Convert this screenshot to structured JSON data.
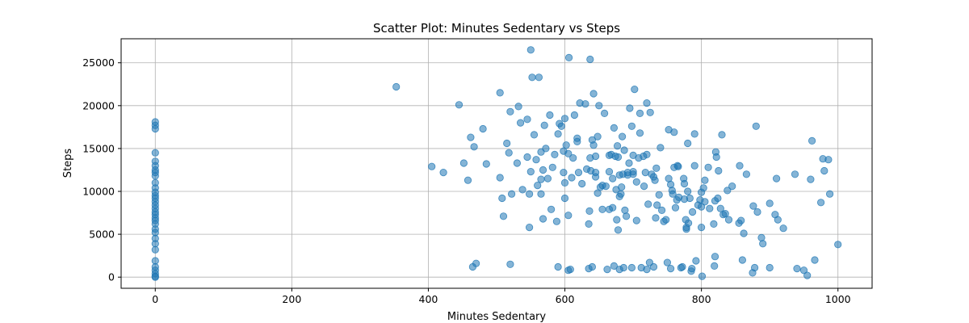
{
  "chart_data": {
    "type": "scatter",
    "title": "Scatter Plot: Minutes Sedentary vs Steps",
    "xlabel": "Minutes Sedentary",
    "ylabel": "Steps",
    "xlim": [
      -50,
      1050
    ],
    "ylim": [
      -1300,
      27800
    ],
    "xticks": [
      0,
      200,
      400,
      600,
      800,
      1000
    ],
    "yticks": [
      0,
      5000,
      10000,
      15000,
      20000,
      25000
    ],
    "grid": true,
    "point_color": "#1f77b4",
    "point_alpha": 0.55,
    "points": [
      [
        0,
        18100
      ],
      [
        0,
        17700
      ],
      [
        0,
        17300
      ],
      [
        0,
        14500
      ],
      [
        0,
        13500
      ],
      [
        0,
        13000
      ],
      [
        0,
        12500
      ],
      [
        0,
        12200
      ],
      [
        0,
        11800
      ],
      [
        0,
        11000
      ],
      [
        0,
        10400
      ],
      [
        0,
        9900
      ],
      [
        0,
        9500
      ],
      [
        0,
        9200
      ],
      [
        0,
        8800
      ],
      [
        0,
        8400
      ],
      [
        0,
        8000
      ],
      [
        0,
        7600
      ],
      [
        0,
        7300
      ],
      [
        0,
        6900
      ],
      [
        0,
        6600
      ],
      [
        0,
        6200
      ],
      [
        0,
        5600
      ],
      [
        0,
        5200
      ],
      [
        0,
        4500
      ],
      [
        0,
        3900
      ],
      [
        0,
        3200
      ],
      [
        0,
        1900
      ],
      [
        0,
        1200
      ],
      [
        0,
        800
      ],
      [
        0,
        400
      ],
      [
        0,
        100
      ],
      [
        0,
        0
      ],
      [
        353,
        22200
      ],
      [
        405,
        12900
      ],
      [
        422,
        12200
      ],
      [
        445,
        20100
      ],
      [
        452,
        13300
      ],
      [
        458,
        11300
      ],
      [
        462,
        16300
      ],
      [
        465,
        1200
      ],
      [
        467,
        15200
      ],
      [
        470,
        1600
      ],
      [
        480,
        17300
      ],
      [
        485,
        13200
      ],
      [
        505,
        21500
      ],
      [
        505,
        11600
      ],
      [
        508,
        9200
      ],
      [
        510,
        7100
      ],
      [
        515,
        15600
      ],
      [
        518,
        14500
      ],
      [
        520,
        1500
      ],
      [
        520,
        19300
      ],
      [
        522,
        9700
      ],
      [
        530,
        13300
      ],
      [
        532,
        19900
      ],
      [
        535,
        18000
      ],
      [
        538,
        10200
      ],
      [
        545,
        18400
      ],
      [
        545,
        14000
      ],
      [
        548,
        5800
      ],
      [
        548,
        9700
      ],
      [
        550,
        12300
      ],
      [
        550,
        26500
      ],
      [
        552,
        23300
      ],
      [
        555,
        16600
      ],
      [
        558,
        13700
      ],
      [
        560,
        10700
      ],
      [
        562,
        23300
      ],
      [
        565,
        14600
      ],
      [
        565,
        9700
      ],
      [
        565,
        11400
      ],
      [
        568,
        12500
      ],
      [
        568,
        6800
      ],
      [
        570,
        17700
      ],
      [
        572,
        15000
      ],
      [
        575,
        11500
      ],
      [
        578,
        18900
      ],
      [
        580,
        7900
      ],
      [
        582,
        12800
      ],
      [
        585,
        14300
      ],
      [
        588,
        6500
      ],
      [
        590,
        16700
      ],
      [
        590,
        1200
      ],
      [
        592,
        17900
      ],
      [
        595,
        17600
      ],
      [
        598,
        14700
      ],
      [
        598,
        12200
      ],
      [
        600,
        11000
      ],
      [
        600,
        18500
      ],
      [
        600,
        9200
      ],
      [
        602,
        15400
      ],
      [
        605,
        7200
      ],
      [
        605,
        14400
      ],
      [
        605,
        800
      ],
      [
        606,
        25600
      ],
      [
        608,
        900
      ],
      [
        610,
        11600
      ],
      [
        612,
        13900
      ],
      [
        614,
        18900
      ],
      [
        618,
        16200
      ],
      [
        618,
        15800
      ],
      [
        620,
        12200
      ],
      [
        622,
        20300
      ],
      [
        625,
        10900
      ],
      [
        630,
        20200
      ],
      [
        632,
        12600
      ],
      [
        635,
        6200
      ],
      [
        635,
        1000
      ],
      [
        636,
        7700
      ],
      [
        637,
        13900
      ],
      [
        637,
        25400
      ],
      [
        638,
        12400
      ],
      [
        640,
        16000
      ],
      [
        640,
        1200
      ],
      [
        642,
        15400
      ],
      [
        642,
        21400
      ],
      [
        645,
        12200
      ],
      [
        645,
        14100
      ],
      [
        645,
        11700
      ],
      [
        648,
        9800
      ],
      [
        648,
        16400
      ],
      [
        650,
        20000
      ],
      [
        652,
        10500
      ],
      [
        655,
        7900
      ],
      [
        655,
        10700
      ],
      [
        658,
        19100
      ],
      [
        660,
        10600
      ],
      [
        662,
        900
      ],
      [
        665,
        7900
      ],
      [
        665,
        12300
      ],
      [
        665,
        14200
      ],
      [
        668,
        14300
      ],
      [
        670,
        8100
      ],
      [
        670,
        11500
      ],
      [
        672,
        17400
      ],
      [
        672,
        1300
      ],
      [
        674,
        14100
      ],
      [
        675,
        10200
      ],
      [
        676,
        6700
      ],
      [
        677,
        15300
      ],
      [
        678,
        14000
      ],
      [
        678,
        5500
      ],
      [
        680,
        9400
      ],
      [
        680,
        900
      ],
      [
        680,
        11900
      ],
      [
        682,
        9700
      ],
      [
        683,
        10500
      ],
      [
        684,
        16400
      ],
      [
        685,
        12000
      ],
      [
        686,
        1100
      ],
      [
        687,
        14800
      ],
      [
        688,
        7800
      ],
      [
        690,
        7100
      ],
      [
        692,
        11900
      ],
      [
        692,
        12200
      ],
      [
        694,
        13300
      ],
      [
        695,
        19700
      ],
      [
        698,
        17600
      ],
      [
        698,
        1100
      ],
      [
        700,
        14200
      ],
      [
        700,
        12300
      ],
      [
        700,
        12000
      ],
      [
        702,
        21900
      ],
      [
        705,
        11100
      ],
      [
        705,
        6600
      ],
      [
        708,
        13900
      ],
      [
        710,
        19100
      ],
      [
        710,
        16800
      ],
      [
        712,
        1100
      ],
      [
        715,
        14100
      ],
      [
        716,
        10600
      ],
      [
        718,
        12200
      ],
      [
        720,
        14300
      ],
      [
        720,
        20300
      ],
      [
        720,
        900
      ],
      [
        722,
        8500
      ],
      [
        724,
        1700
      ],
      [
        725,
        19200
      ],
      [
        727,
        12000
      ],
      [
        730,
        1200
      ],
      [
        730,
        11700
      ],
      [
        732,
        11300
      ],
      [
        733,
        6900
      ],
      [
        734,
        12700
      ],
      [
        735,
        8400
      ],
      [
        738,
        9600
      ],
      [
        740,
        15100
      ],
      [
        742,
        7800
      ],
      [
        745,
        6500
      ],
      [
        748,
        6700
      ],
      [
        750,
        1700
      ],
      [
        752,
        11500
      ],
      [
        752,
        17200
      ],
      [
        755,
        10800
      ],
      [
        755,
        1000
      ],
      [
        757,
        10100
      ],
      [
        758,
        9700
      ],
      [
        760,
        12800
      ],
      [
        760,
        16900
      ],
      [
        762,
        8100
      ],
      [
        764,
        9000
      ],
      [
        765,
        13000
      ],
      [
        766,
        12900
      ],
      [
        767,
        9300
      ],
      [
        770,
        1100
      ],
      [
        772,
        1200
      ],
      [
        774,
        11500
      ],
      [
        775,
        9100
      ],
      [
        775,
        10900
      ],
      [
        777,
        6700
      ],
      [
        778,
        5600
      ],
      [
        778,
        5800
      ],
      [
        780,
        10000
      ],
      [
        780,
        15600
      ],
      [
        781,
        6300
      ],
      [
        783,
        9200
      ],
      [
        785,
        700
      ],
      [
        786,
        1000
      ],
      [
        787,
        7600
      ],
      [
        790,
        16700
      ],
      [
        790,
        13000
      ],
      [
        792,
        1900
      ],
      [
        795,
        8400
      ],
      [
        798,
        9000
      ],
      [
        800,
        8200
      ],
      [
        800,
        5800
      ],
      [
        800,
        9900
      ],
      [
        801,
        100
      ],
      [
        803,
        10400
      ],
      [
        805,
        11300
      ],
      [
        805,
        8800
      ],
      [
        810,
        12800
      ],
      [
        812,
        8000
      ],
      [
        818,
        6200
      ],
      [
        819,
        1300
      ],
      [
        820,
        8900
      ],
      [
        820,
        2400
      ],
      [
        821,
        14600
      ],
      [
        822,
        14000
      ],
      [
        824,
        9200
      ],
      [
        825,
        12400
      ],
      [
        828,
        8000
      ],
      [
        830,
        16600
      ],
      [
        832,
        7300
      ],
      [
        835,
        7400
      ],
      [
        838,
        10100
      ],
      [
        840,
        6700
      ],
      [
        845,
        10600
      ],
      [
        855,
        6300
      ],
      [
        856,
        13000
      ],
      [
        858,
        6600
      ],
      [
        860,
        2000
      ],
      [
        862,
        5100
      ],
      [
        866,
        12000
      ],
      [
        875,
        500
      ],
      [
        876,
        8300
      ],
      [
        878,
        1100
      ],
      [
        880,
        17600
      ],
      [
        882,
        7600
      ],
      [
        888,
        4600
      ],
      [
        890,
        3900
      ],
      [
        900,
        8600
      ],
      [
        900,
        1100
      ],
      [
        908,
        7300
      ],
      [
        910,
        11500
      ],
      [
        912,
        6700
      ],
      [
        920,
        5700
      ],
      [
        937,
        12000
      ],
      [
        940,
        1000
      ],
      [
        950,
        800
      ],
      [
        955,
        200
      ],
      [
        960,
        11400
      ],
      [
        962,
        15900
      ],
      [
        966,
        2000
      ],
      [
        975,
        8700
      ],
      [
        978,
        13800
      ],
      [
        980,
        12400
      ],
      [
        986,
        13700
      ],
      [
        988,
        9700
      ],
      [
        1000,
        3800
      ]
    ]
  }
}
